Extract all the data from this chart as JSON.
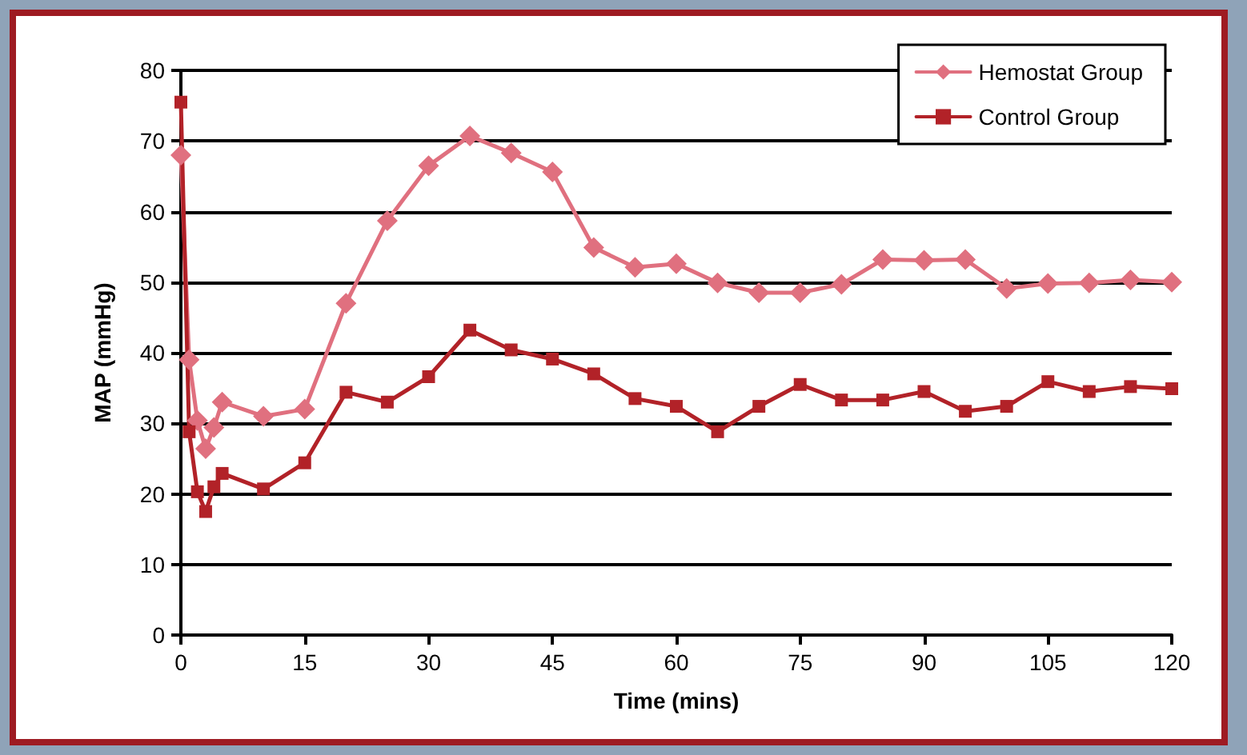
{
  "chart_data": {
    "type": "line",
    "xlabel": "Time (mins)",
    "ylabel": "MAP (mmHg)",
    "xlim": [
      0,
      120
    ],
    "xticks": [
      0,
      15,
      30,
      45,
      60,
      75,
      90,
      105,
      120
    ],
    "ylim": [
      0,
      80
    ],
    "yticks": [
      0,
      10,
      20,
      30,
      40,
      50,
      60,
      70,
      80
    ],
    "grid": "y",
    "legend": "top right",
    "line_style": "solid",
    "series": [
      {
        "name": "Hemostat Group",
        "color": "#e0707f",
        "marker": "diamond",
        "x": [
          0,
          1,
          2,
          3,
          4,
          5,
          10,
          15,
          20,
          25,
          30,
          35,
          40,
          45,
          50,
          55,
          60,
          65,
          70,
          75,
          80,
          85,
          90,
          95,
          100,
          105,
          110,
          115,
          120
        ],
        "values": [
          68,
          39,
          30.4,
          26.4,
          29.4,
          33,
          31,
          32,
          47,
          58.7,
          66.5,
          70.7,
          68.3,
          65.6,
          54.9,
          52.1,
          52.6,
          49.9,
          48.5,
          48.5,
          49.7,
          53.2,
          53.1,
          53.2,
          49.1,
          49.8,
          49.9,
          50.3,
          50
        ]
      },
      {
        "name": "Control Group",
        "color": "#b22228",
        "marker": "square",
        "x": [
          0,
          1,
          2,
          3,
          4,
          5,
          10,
          15,
          20,
          25,
          30,
          35,
          40,
          45,
          50,
          55,
          60,
          65,
          70,
          75,
          80,
          85,
          90,
          95,
          100,
          105,
          110,
          115,
          120
        ],
        "values": [
          75.5,
          28.8,
          20.3,
          17.5,
          21,
          22.9,
          20.7,
          24.4,
          34.4,
          33,
          36.6,
          43.2,
          40.4,
          39.1,
          37,
          33.5,
          32.4,
          28.8,
          32.4,
          35.5,
          33.3,
          33.3,
          34.5,
          31.7,
          32.4,
          35.9,
          34.5,
          35.2,
          34.9
        ]
      }
    ]
  }
}
